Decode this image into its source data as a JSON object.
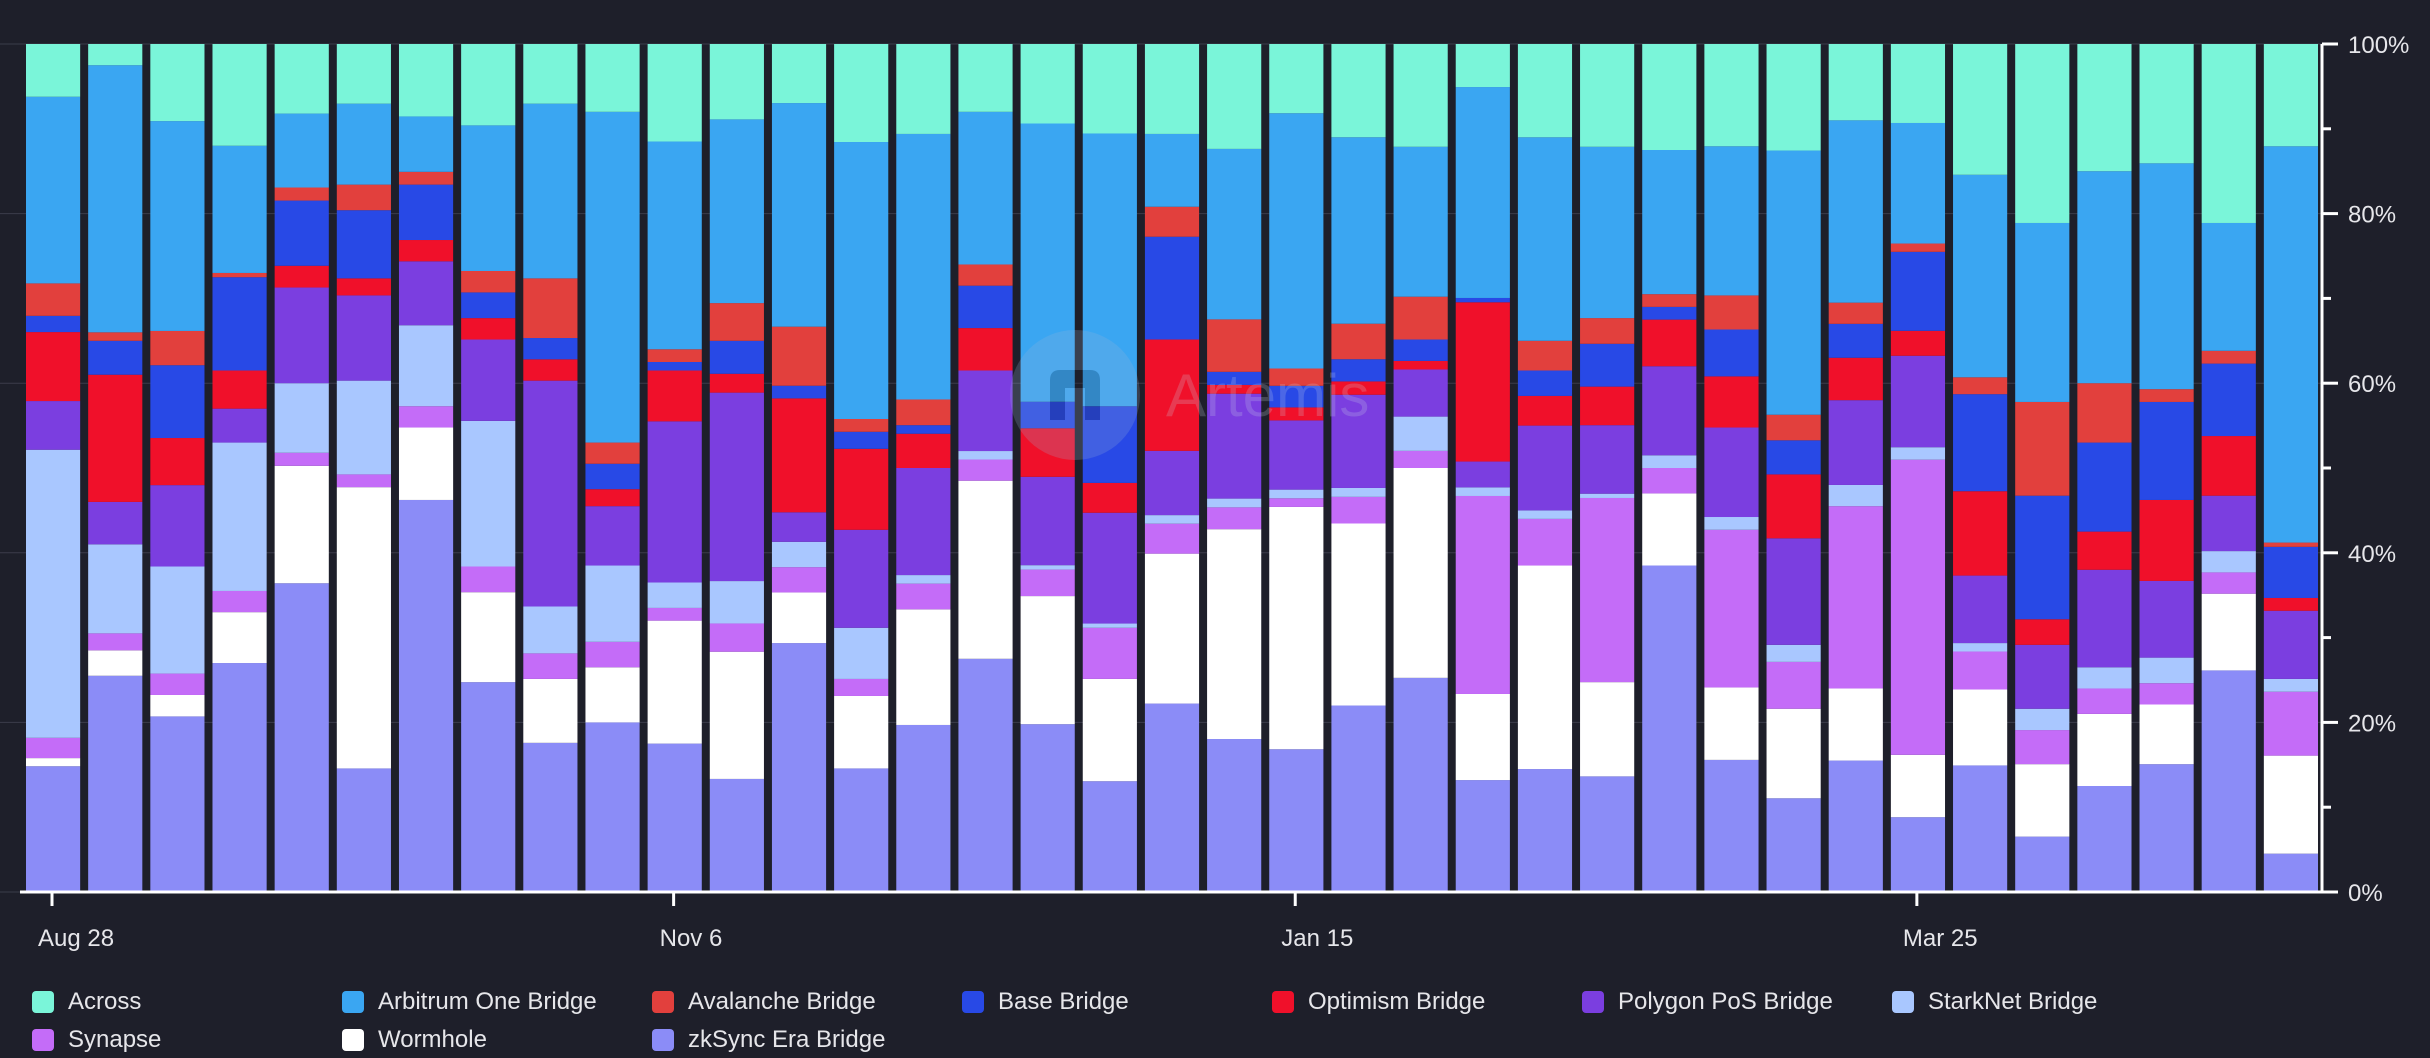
{
  "chart_data": {
    "type": "bar",
    "stacked": "percent",
    "title": "",
    "xlabel": "",
    "ylabel": "",
    "ylim": [
      0,
      100
    ],
    "y_ticks": [
      "0%",
      "20%",
      "40%",
      "60%",
      "80%",
      "100%"
    ],
    "x_tick_labels": [
      {
        "label": "Aug 28",
        "index": 0
      },
      {
        "label": "Nov 6",
        "index": 10
      },
      {
        "label": "Jan 15",
        "index": 20
      },
      {
        "label": "Mar 25",
        "index": 30
      }
    ],
    "grid": true,
    "legend_position": "bottom",
    "series": [
      {
        "name": "zkSync Era Bridge",
        "color": "#8b8cf7",
        "values": [
          15.5,
          25.5,
          20.5,
          27,
          35.5,
          14.5,
          46,
          24.5,
          17.5,
          20,
          17.5,
          12,
          29.5,
          14.5,
          19.5,
          27.5,
          19,
          13,
          22,
          17.5,
          16.5,
          21,
          25,
          13,
          14.5,
          13.5,
          38.5,
          15.5,
          11,
          15.5,
          9,
          15,
          6.5,
          12.5,
          15,
          26,
          4.5
        ]
      },
      {
        "name": "Wormhole",
        "color": "#ffffff",
        "values": [
          1,
          3,
          2.5,
          6,
          13.5,
          33,
          8.5,
          10.5,
          7.5,
          6.5,
          14.5,
          13.5,
          6,
          8.5,
          13.5,
          21,
          14.5,
          12,
          17.5,
          24,
          28,
          20.5,
          24.5,
          10,
          24,
          11,
          8.5,
          8.5,
          10.5,
          8.5,
          7.5,
          9,
          8.5,
          8.5,
          7,
          9,
          11.5
        ]
      },
      {
        "name": "Synapse",
        "color": "#c46cf8",
        "values": [
          2.5,
          2,
          2.5,
          2.5,
          1.5,
          1.5,
          2.5,
          3,
          3,
          3,
          1.5,
          3,
          3,
          2,
          3,
          2.5,
          3,
          6,
          3.5,
          2.5,
          1,
          3,
          2,
          23,
          5.5,
          21.5,
          3,
          18.5,
          5.5,
          21.5,
          35.5,
          4.5,
          4,
          3,
          2.5,
          2.5,
          7.5
        ]
      },
      {
        "name": "StarkNet Bridge",
        "color": "#a9c7ff",
        "values": [
          35.5,
          10.5,
          12.5,
          17.5,
          8,
          11,
          9.5,
          17,
          5.5,
          9,
          3,
          4.5,
          3,
          6,
          1,
          1,
          0.5,
          0.5,
          1,
          1,
          1,
          1,
          4,
          1,
          1,
          0.5,
          1.5,
          1.5,
          2,
          2.5,
          1.5,
          1,
          2.5,
          2.5,
          3,
          2.5,
          1.5
        ]
      },
      {
        "name": "Polygon PoS Bridge",
        "color": "#7b3ee0",
        "values": [
          6,
          5,
          9.5,
          4,
          11,
          10,
          7.5,
          9.5,
          26.5,
          7,
          19,
          20,
          3.5,
          11.5,
          12.5,
          9.5,
          10,
          13,
          7.5,
          12,
          8,
          10.5,
          5.5,
          3,
          10,
          8,
          10.5,
          10.5,
          12.5,
          10,
          11,
          8,
          7.5,
          11.5,
          9,
          6.5,
          8
        ]
      },
      {
        "name": "Optimism Bridge",
        "color": "#f0102a",
        "values": [
          8.5,
          15,
          5.5,
          4.5,
          2.5,
          2,
          2.5,
          2.5,
          2.5,
          2,
          6,
          2,
          13.5,
          9.5,
          4,
          5,
          5.5,
          3.5,
          13,
          1,
          1.5,
          1.5,
          1,
          18.5,
          3.5,
          4.5,
          5.5,
          6,
          7.5,
          5,
          3,
          10,
          3,
          4.5,
          9.5,
          7,
          1.5
        ]
      },
      {
        "name": "Base Bridge",
        "color": "#2849e6",
        "values": [
          2,
          4,
          8.5,
          11,
          7.5,
          8,
          6.5,
          3,
          2.5,
          3,
          1,
          3.5,
          1.5,
          2,
          1,
          5,
          3,
          9,
          12,
          1.5,
          2.5,
          2.5,
          2.5,
          0.5,
          3,
          5,
          1.5,
          5.5,
          4,
          4,
          9.5,
          11.5,
          14.5,
          10.5,
          11.5,
          8.5,
          6
        ]
      },
      {
        "name": "Avalanche Bridge",
        "color": "#e2403d",
        "values": [
          4,
          1,
          4,
          0.5,
          1.5,
          3,
          1.5,
          2.5,
          7,
          2.5,
          1.5,
          4,
          7,
          1.5,
          3,
          2.5,
          0,
          0,
          3.5,
          6,
          2,
          4,
          5,
          0,
          3.5,
          3,
          1.5,
          4,
          3,
          2.5,
          1,
          2,
          11,
          7,
          1.5,
          1.5,
          0.5
        ]
      },
      {
        "name": "Arbitrum One Bridge",
        "color": "#3aa6f2",
        "values": [
          23,
          31.5,
          24.5,
          15,
          8.5,
          9.5,
          6.5,
          17,
          20.5,
          39,
          24.5,
          19.5,
          26.5,
          32.5,
          31,
          18,
          31.5,
          32,
          8.5,
          19.5,
          29.5,
          21,
          17.5,
          24.5,
          24,
          20,
          17,
          17.5,
          31,
          21.5,
          14.5,
          24,
          21,
          25,
          26.5,
          15,
          46.5
        ]
      },
      {
        "name": "Across",
        "color": "#7af5d9",
        "values": [
          6.5,
          2.5,
          9,
          12,
          8,
          7,
          8.5,
          9.5,
          7,
          8,
          11.5,
          8,
          7,
          11.5,
          10.5,
          8,
          9,
          10.5,
          10.5,
          12,
          8,
          10.5,
          12,
          5,
          11,
          12,
          12.5,
          12,
          12.5,
          9,
          9.5,
          15.5,
          21,
          15,
          14,
          21,
          12
        ]
      }
    ]
  },
  "watermark": {
    "text": "Artemis"
  }
}
